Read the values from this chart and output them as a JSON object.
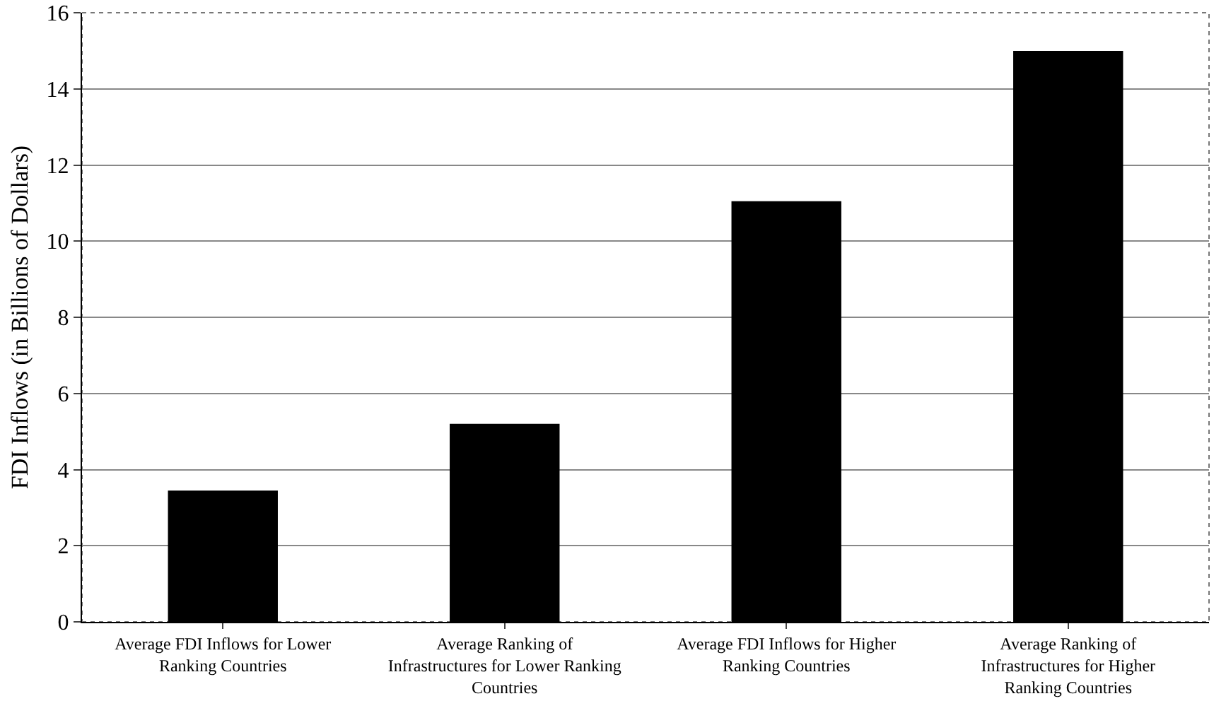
{
  "chart_data": {
    "type": "bar",
    "categories": [
      "Average FDI Inflows for Lower Ranking Countries",
      "Average Ranking of Infrastructures for Lower Ranking Countries",
      "Average FDI Inflows for Higher Ranking Countries",
      "Average Ranking of Infrastructures for Higher Ranking Countries"
    ],
    "values": [
      3.45,
      5.2,
      11.05,
      15.0
    ],
    "color": "#000000",
    "ylabel": "FDI Inflows (in Billions of Dollars)",
    "ylim": [
      0,
      16
    ],
    "yticks": [
      0,
      2,
      4,
      6,
      8,
      10,
      12,
      14,
      16
    ],
    "grid": "y"
  }
}
